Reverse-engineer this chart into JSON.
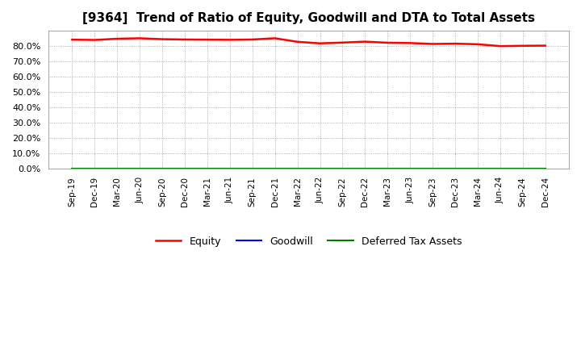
{
  "title": "[9364]  Trend of Ratio of Equity, Goodwill and DTA to Total Assets",
  "x_labels": [
    "Sep-19",
    "Dec-19",
    "Mar-20",
    "Jun-20",
    "Sep-20",
    "Dec-20",
    "Mar-21",
    "Jun-21",
    "Sep-21",
    "Dec-21",
    "Mar-22",
    "Jun-22",
    "Sep-22",
    "Dec-22",
    "Mar-23",
    "Jun-23",
    "Sep-23",
    "Dec-23",
    "Mar-24",
    "Jun-24",
    "Sep-24",
    "Dec-24"
  ],
  "equity": [
    84.2,
    84.0,
    84.8,
    85.1,
    84.5,
    84.3,
    84.2,
    84.1,
    84.3,
    85.1,
    82.8,
    81.8,
    82.3,
    82.9,
    82.2,
    82.0,
    81.4,
    81.6,
    81.2,
    80.0,
    80.2,
    80.3
  ],
  "goodwill": [
    0.0,
    0.0,
    0.0,
    0.0,
    0.0,
    0.0,
    0.0,
    0.0,
    0.0,
    0.0,
    0.0,
    0.0,
    0.0,
    0.0,
    0.0,
    0.0,
    0.0,
    0.0,
    0.0,
    0.0,
    0.0,
    0.0
  ],
  "dta": [
    0.0,
    0.0,
    0.0,
    0.0,
    0.0,
    0.0,
    0.0,
    0.0,
    0.0,
    0.0,
    0.0,
    0.0,
    0.0,
    0.0,
    0.0,
    0.0,
    0.0,
    0.0,
    0.0,
    0.0,
    0.0,
    0.0
  ],
  "equity_color": "#FF0000",
  "goodwill_color": "#0000FF",
  "dta_color": "#008000",
  "ylim": [
    0,
    90
  ],
  "yticks": [
    0,
    10,
    20,
    30,
    40,
    50,
    60,
    70,
    80
  ],
  "background_color": "#FFFFFF",
  "plot_bg_color": "#FFFFFF",
  "grid_color": "#999999",
  "title_fontsize": 11,
  "legend_labels": [
    "Equity",
    "Goodwill",
    "Deferred Tax Assets"
  ]
}
